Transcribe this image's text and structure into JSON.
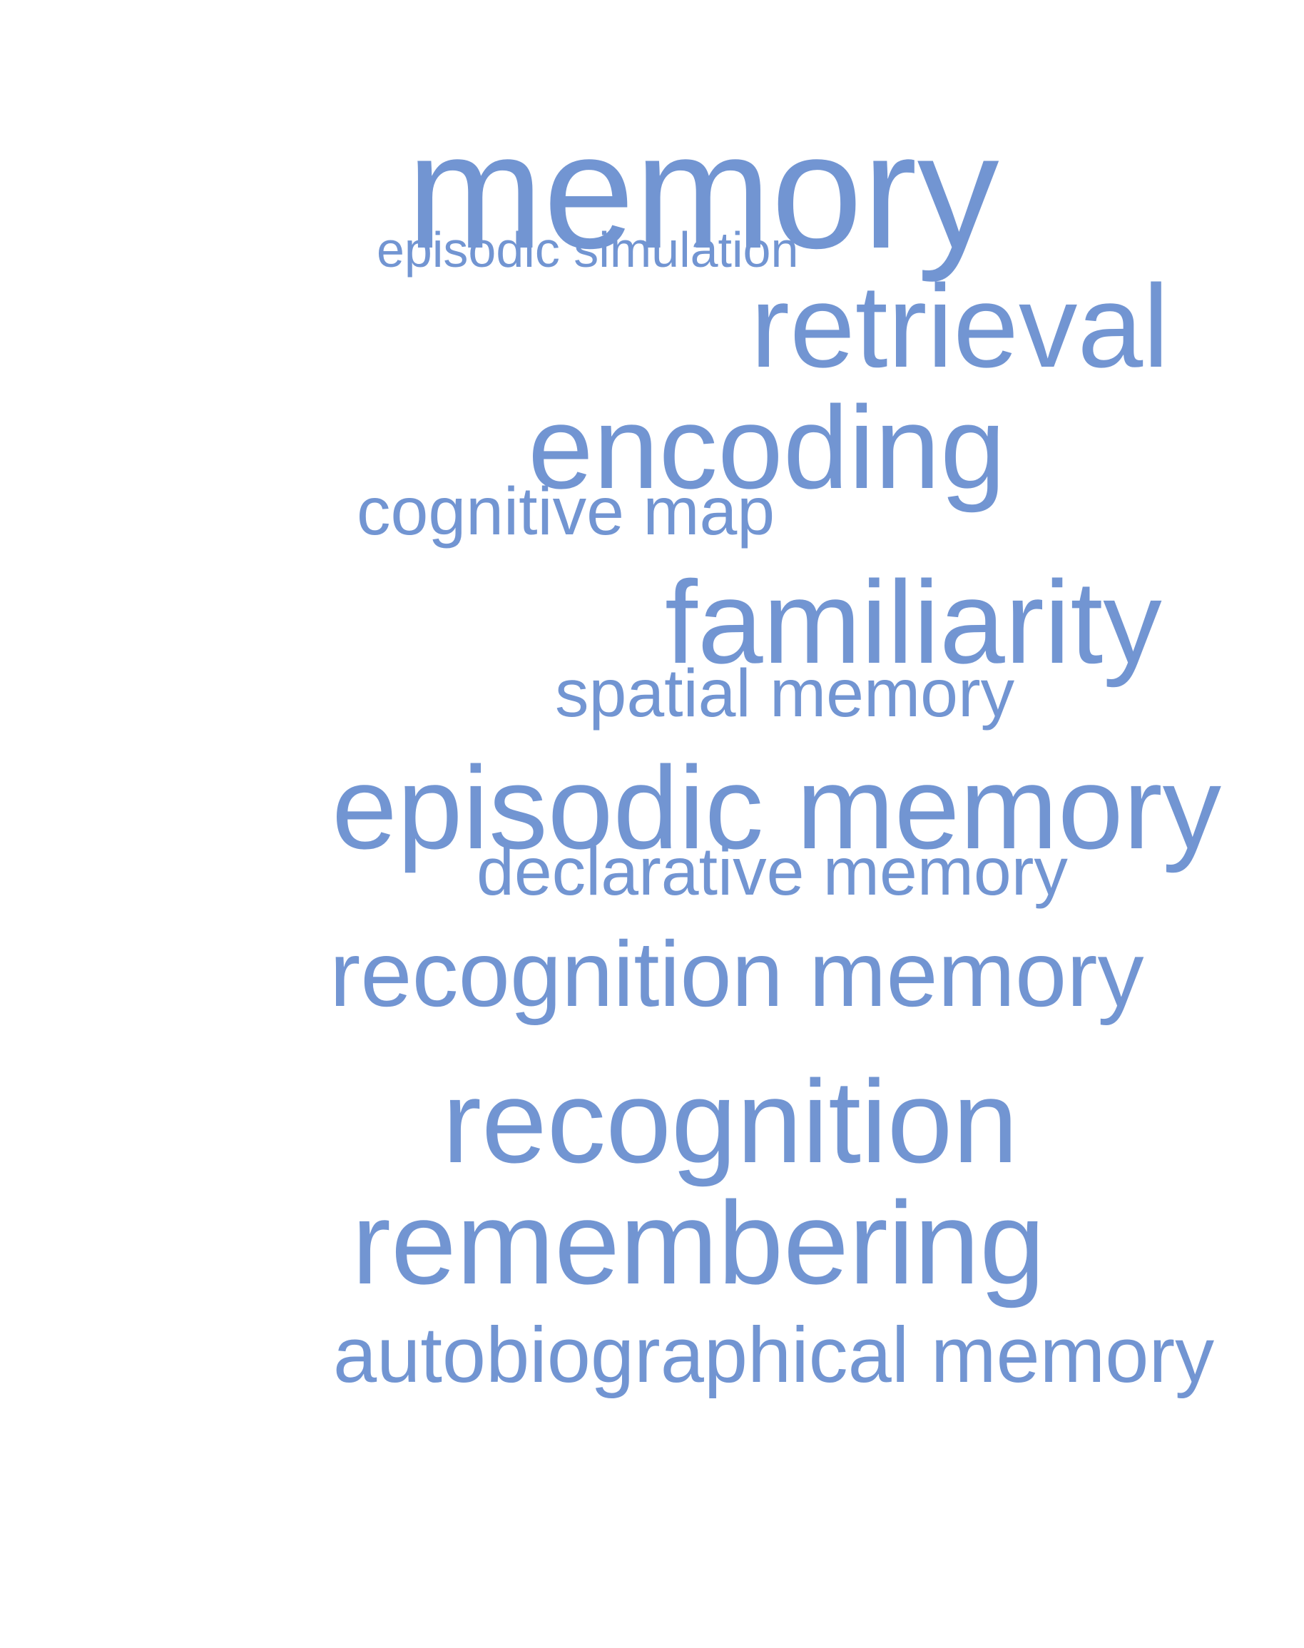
{
  "colors": {
    "word": "#7295d2",
    "background": "#ffffff"
  },
  "words": [
    {
      "id": "memory",
      "text": "memory",
      "weight": 1.0
    },
    {
      "id": "episodic-simulation",
      "text": "episodic simulation",
      "weight": 0.3
    },
    {
      "id": "retrieval",
      "text": "retrieval",
      "weight": 0.72
    },
    {
      "id": "encoding",
      "text": "encoding",
      "weight": 0.72
    },
    {
      "id": "cognitive-map",
      "text": "cognitive map",
      "weight": 0.41
    },
    {
      "id": "familiarity",
      "text": "familiarity",
      "weight": 0.72
    },
    {
      "id": "spatial-memory",
      "text": "spatial memory",
      "weight": 0.41
    },
    {
      "id": "episodic-memory",
      "text": "episodic memory",
      "weight": 0.72
    },
    {
      "id": "declarative-memory",
      "text": "declarative memory",
      "weight": 0.41
    },
    {
      "id": "recognition-memory",
      "text": "recognition memory",
      "weight": 0.57
    },
    {
      "id": "recognition",
      "text": "recognition",
      "weight": 0.72
    },
    {
      "id": "remembering",
      "text": "remembering",
      "weight": 0.72
    },
    {
      "id": "autobiographical-memory",
      "text": "autobiographical memory",
      "weight": 0.48
    }
  ]
}
